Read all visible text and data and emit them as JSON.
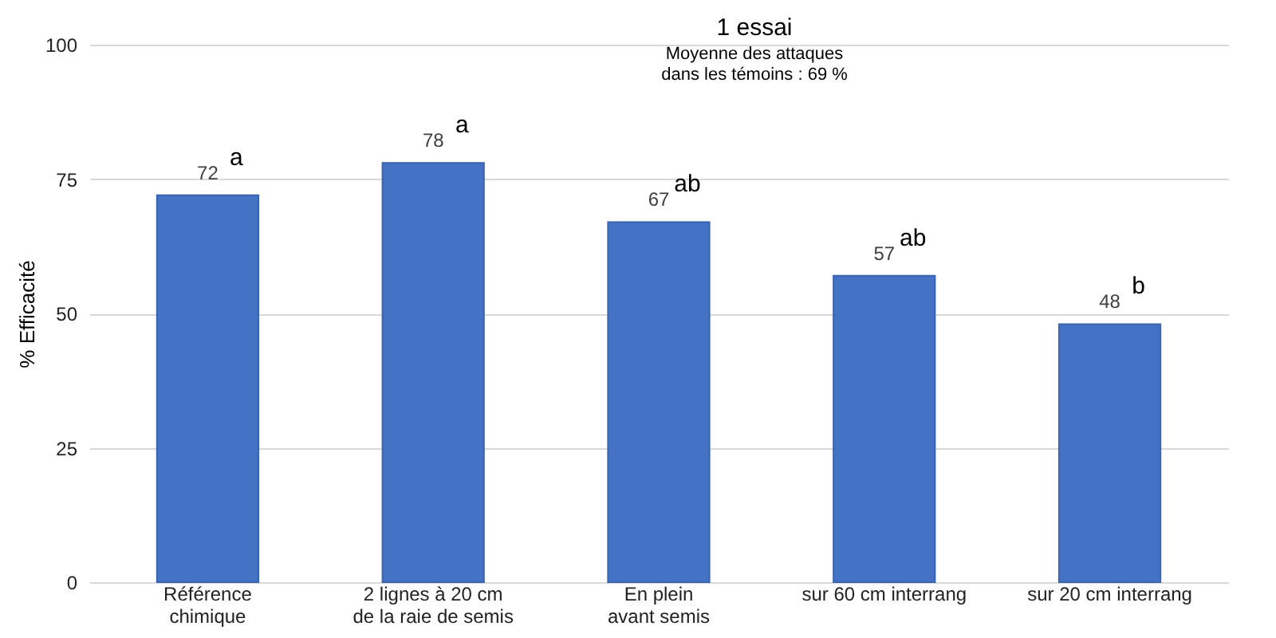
{
  "chart_data": {
    "type": "bar",
    "title": "1 essai",
    "subtitle": "Moyenne des attaques\ndans les témoins : 69 %",
    "ylabel": "% Efficacité",
    "categories": [
      "Référence\nchimique",
      "2 lignes à 20 cm\nde la raie de semis",
      "En plein\navant semis",
      "sur 60 cm interrang",
      "sur 20 cm interrang"
    ],
    "values": [
      72,
      78,
      67,
      57,
      48
    ],
    "color": "#4472c4",
    "data_labels": true,
    "ylim": [
      0,
      100
    ],
    "yticks": [
      0,
      25,
      50,
      75,
      100
    ],
    "grid": "y",
    "annotations": [
      "a",
      "a",
      "ab",
      "ab",
      "b"
    ]
  }
}
